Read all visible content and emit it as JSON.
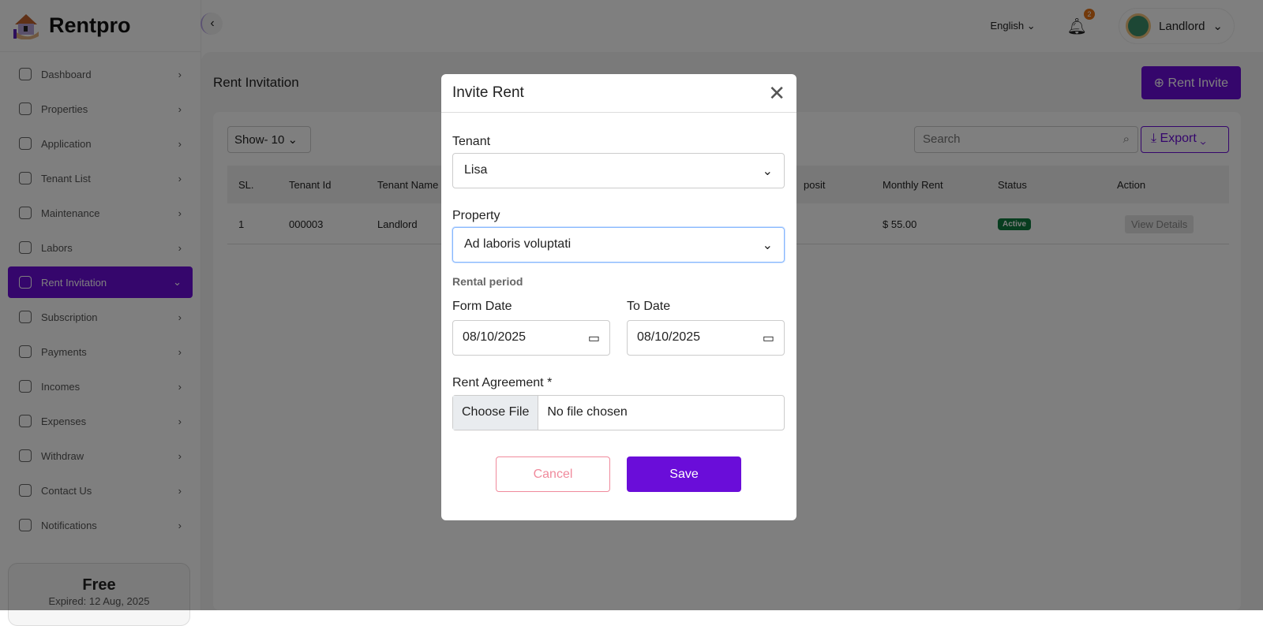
{
  "app": {
    "name": "Rentpro"
  },
  "topbar": {
    "language": "English",
    "notification_count": "2",
    "user": "Landlord"
  },
  "sidebar": {
    "items": [
      {
        "label": "Dashboard",
        "icon": "home-icon"
      },
      {
        "label": "Properties",
        "icon": "building-icon"
      },
      {
        "label": "Application",
        "icon": "send-icon"
      },
      {
        "label": "Tenant List",
        "icon": "users-icon"
      },
      {
        "label": "Maintenance",
        "icon": "wrench-icon"
      },
      {
        "label": "Labors",
        "icon": "worker-icon"
      },
      {
        "label": "Rent Invitation",
        "icon": "invite-icon",
        "active": true
      },
      {
        "label": "Subscription",
        "icon": "subscription-icon"
      },
      {
        "label": "Payments",
        "icon": "payment-icon"
      },
      {
        "label": "Incomes",
        "icon": "money-bag-icon"
      },
      {
        "label": "Expenses",
        "icon": "expense-icon"
      },
      {
        "label": "Withdraw",
        "icon": "withdraw-icon"
      },
      {
        "label": "Contact Us",
        "icon": "chat-icon"
      },
      {
        "label": "Notifications",
        "icon": "bell-icon"
      }
    ],
    "plan": {
      "name": "Free",
      "expiry": "Expired: 12 Aug, 2025"
    }
  },
  "page": {
    "title": "Rent Invitation",
    "action": "Rent Invite",
    "show": "Show- 10",
    "search_placeholder": "Search",
    "export": "Export",
    "columns": [
      "SL.",
      "Tenant Id",
      "Tenant Name",
      "posit",
      "Monthly Rent",
      "Status",
      "Action"
    ],
    "rows": [
      {
        "sl": "1",
        "tenant_id": "000003",
        "tenant_name": "Landlord",
        "monthly_rent": "$ 55.00",
        "status": "Active",
        "action": "View Details"
      }
    ]
  },
  "modal": {
    "title": "Invite Rent",
    "tenant_label": "Tenant",
    "tenant_value": "Lisa",
    "property_label": "Property",
    "property_value": "Ad laboris voluptati",
    "rental_period": "Rental period",
    "from_label": "Form Date",
    "from_value": "08/10/2025",
    "to_label": "To Date",
    "to_value": "08/10/2025",
    "agreement_label": "Rent Agreement *",
    "choose_file": "Choose File",
    "no_file": "No file chosen",
    "cancel": "Cancel",
    "save": "Save"
  },
  "colors": {
    "accent": "#6a0dd9",
    "active_badge": "#0f7a3f",
    "cancel": "#f08a9c"
  }
}
